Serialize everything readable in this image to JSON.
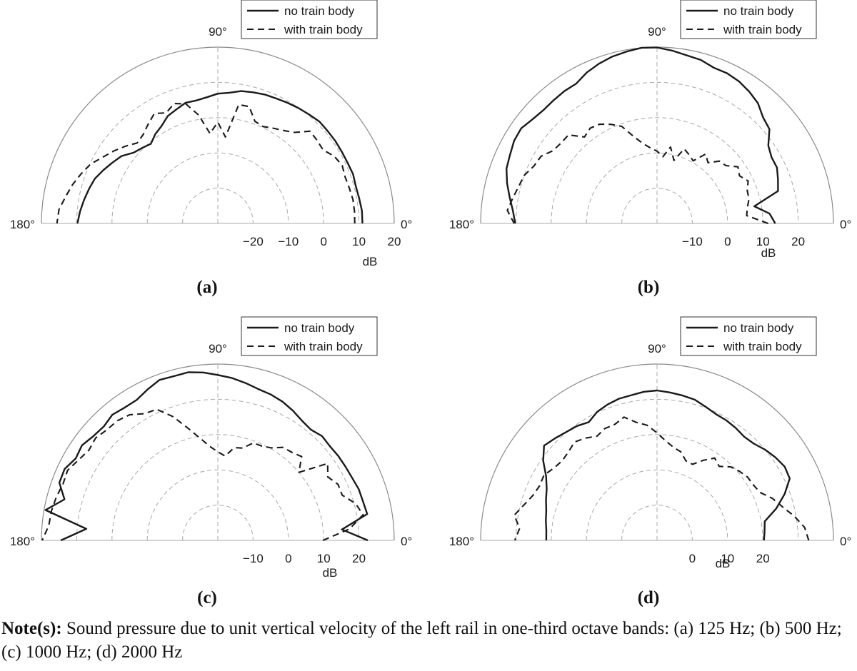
{
  "legend": {
    "solid": "no train body",
    "dashed": "with train body"
  },
  "angle_labels": {
    "deg0": "0°",
    "deg90": "90°",
    "deg180": "180°"
  },
  "unit_label": "dB",
  "note": {
    "prefix": "Note(s):",
    "text": "Sound pressure due to unit vertical velocity of the left rail in one-third octave bands: (a) 125 Hz; (b) 500 Hz; (c) 1000 Hz; (d) 2000 Hz"
  },
  "colors": {
    "curves": "#1a1a1a",
    "grid": "#a8a8a8",
    "outer": "#8a8a8a"
  },
  "chart_data": [
    {
      "type": "polar-line",
      "panel_label": "(a)",
      "unit": "dB",
      "r_ticks": [
        "-20",
        "-10",
        "0",
        "10",
        "20"
      ],
      "r_min": -30,
      "r_max": 20,
      "theta_range_deg": [
        0,
        180
      ],
      "series": [
        {
          "name": "no train body",
          "style": "solid",
          "theta_deg": [
            0,
            5,
            10,
            15,
            20,
            25,
            30,
            35,
            40,
            45,
            50,
            55,
            60,
            65,
            70,
            75,
            80,
            85,
            90,
            95,
            100,
            105,
            110,
            115,
            120,
            125,
            130,
            135,
            140,
            145,
            150,
            155,
            160,
            165,
            170,
            175,
            180
          ],
          "r": [
            11,
            11,
            10.7,
            10.5,
            10.8,
            10.6,
            10.6,
            10.7,
            10.7,
            10.8,
            10.3,
            9.9,
            9.5,
            9.1,
            8.9,
            8.5,
            8.1,
            7.2,
            6.8,
            5.9,
            5.4,
            5.4,
            4.4,
            3.6,
            1.9,
            0.9,
            -0.5,
            0.3,
            1.2,
            3.3,
            4.5,
            5.8,
            7.1,
            7.8,
            8.5,
            9.2,
            9.8
          ]
        },
        {
          "name": "with train body",
          "style": "dashed",
          "theta_deg": [
            0,
            5,
            10,
            15,
            20,
            25,
            30,
            35,
            40,
            45,
            50,
            55,
            60,
            65,
            70,
            75,
            80,
            85,
            90,
            95,
            100,
            105,
            110,
            115,
            120,
            125,
            130,
            135,
            140,
            145,
            150,
            155,
            160,
            165,
            170,
            175,
            180
          ],
          "r": [
            8.8,
            8.9,
            8.9,
            8.6,
            8.4,
            8.9,
            8.1,
            6.4,
            6.7,
            7.0,
            3.7,
            2.2,
            1.2,
            0.3,
            0.8,
            4.3,
            4.2,
            -5.4,
            -1.3,
            -4.4,
            1.2,
            5.1,
            6.2,
            4.6,
            6.0,
            4.4,
            2.9,
            2.3,
            4.1,
            5.9,
            7.6,
            9.8,
            11.2,
            12.6,
            13.8,
            15.2,
            15.6
          ]
        }
      ]
    },
    {
      "type": "polar-line",
      "panel_label": "(b)",
      "unit": "dB",
      "r_ticks": [
        "-10",
        "0",
        "10",
        "20"
      ],
      "r_min": -20,
      "r_max": 30,
      "theta_range_deg": [
        0,
        180
      ],
      "series": [
        {
          "name": "no train body",
          "style": "solid",
          "theta_deg": [
            0,
            5,
            10,
            15,
            20,
            25,
            30,
            35,
            40,
            45,
            50,
            55,
            60,
            65,
            70,
            75,
            80,
            85,
            90,
            95,
            100,
            105,
            110,
            115,
            120,
            125,
            130,
            135,
            140,
            145,
            150,
            155,
            160,
            165,
            170,
            175,
            180
          ],
          "r": [
            13.5,
            12,
            8,
            15.5,
            16.5,
            17.5,
            17.5,
            18.5,
            21.6,
            22.5,
            24.5,
            25.6,
            26.5,
            27,
            27,
            28,
            28.4,
            29.2,
            29.9,
            30,
            29.5,
            29,
            28.2,
            27.2,
            25.8,
            25.8,
            25.6,
            25.5,
            26,
            27,
            26.8,
            26,
            25.4,
            24,
            22.4,
            21,
            20.2
          ]
        },
        {
          "name": "with train body",
          "style": "dashed",
          "theta_deg": [
            0,
            5,
            10,
            15,
            20,
            25,
            30,
            35,
            40,
            45,
            50,
            55,
            60,
            65,
            70,
            75,
            80,
            85,
            90,
            95,
            100,
            105,
            110,
            115,
            120,
            125,
            130,
            135,
            140,
            145,
            150,
            155,
            160,
            165,
            170,
            175,
            180
          ],
          "r": [
            11.5,
            5.5,
            6,
            7,
            7.2,
            8.5,
            7,
            8,
            5.5,
            5,
            2.5,
            4,
            0.5,
            1.5,
            2.5,
            -1.5,
            2,
            -1,
            0.5,
            1.5,
            3,
            5.5,
            9.3,
            11,
            12.5,
            13,
            12,
            15.5,
            15.5,
            16,
            18,
            18.5,
            20,
            20.6,
            21.5,
            22.6,
            20.5
          ]
        }
      ]
    },
    {
      "type": "polar-line",
      "panel_label": "(c)",
      "unit": "dB",
      "r_ticks": [
        "-10",
        "0",
        "10",
        "20"
      ],
      "r_min": -20,
      "r_max": 30,
      "theta_range_deg": [
        0,
        180
      ],
      "series": [
        {
          "name": "no train body",
          "style": "solid",
          "theta_deg": [
            0,
            5,
            10,
            15,
            20,
            25,
            30,
            35,
            40,
            45,
            50,
            55,
            60,
            65,
            70,
            75,
            80,
            85,
            90,
            95,
            100,
            105,
            110,
            115,
            120,
            125,
            130,
            135,
            140,
            145,
            150,
            155,
            160,
            165,
            170,
            175,
            180
          ],
          "r": [
            22.5,
            15.3,
            23,
            22.6,
            22.5,
            22,
            21.8,
            21.7,
            21.5,
            21.8,
            21,
            21.5,
            22.5,
            23.4,
            24,
            24.4,
            25.3,
            26.2,
            26.9,
            27.8,
            28.4,
            28.2,
            28.4,
            27.2,
            26,
            26,
            26.5,
            25.7,
            26,
            27,
            26.5,
            27.9,
            27.8,
            25,
            29.6,
            17.4,
            24.5
          ]
        },
        {
          "name": "with train body",
          "style": "dashed",
          "theta_deg": [
            0,
            5,
            10,
            15,
            20,
            25,
            30,
            35,
            40,
            45,
            50,
            55,
            60,
            65,
            70,
            75,
            80,
            85,
            90,
            95,
            100,
            105,
            110,
            115,
            120,
            125,
            130,
            135,
            140,
            145,
            150,
            155,
            160,
            165,
            170,
            175,
            180
          ],
          "r": [
            9.8,
            17.5,
            21.8,
            20.4,
            17.5,
            17.6,
            16,
            18,
            10,
            13.6,
            12.6,
            12.2,
            10.3,
            9.5,
            9.4,
            7.1,
            6.7,
            4,
            5.1,
            6.8,
            9.5,
            13,
            17.4,
            21,
            21.5,
            23.5,
            24.3,
            24.4,
            25.2,
            24.6,
            25.6,
            27,
            26.7,
            27.4,
            27.9,
            28.1,
            29.8
          ]
        }
      ]
    },
    {
      "type": "polar-line",
      "panel_label": "(d)",
      "unit": "dB",
      "r_ticks": [
        "0",
        "10",
        "20"
      ],
      "r_min": -10,
      "r_max": 40,
      "theta_range_deg": [
        0,
        180
      ],
      "series": [
        {
          "name": "no train body",
          "style": "solid",
          "theta_deg": [
            0,
            5,
            10,
            15,
            20,
            25,
            30,
            35,
            40,
            45,
            50,
            55,
            60,
            65,
            70,
            75,
            80,
            85,
            90,
            95,
            100,
            105,
            110,
            115,
            120,
            125,
            130,
            135,
            140,
            145,
            150,
            155,
            160,
            165,
            170,
            175,
            180
          ],
          "r": [
            20.3,
            20.6,
            21,
            25,
            28.5,
            31.5,
            31.8,
            31,
            30,
            28.8,
            28.4,
            28.9,
            29.3,
            29.5,
            30.3,
            31.3,
            31.7,
            32.1,
            32.5,
            32.3,
            31.8,
            31.6,
            31,
            30.2,
            28.7,
            29.6,
            30.1,
            30.9,
            31.8,
            29.4,
            26.3,
            24.5,
            23.5,
            22.5,
            22,
            21.5,
            21.4
          ]
        },
        {
          "name": "with train body",
          "style": "dashed",
          "theta_deg": [
            0,
            5,
            10,
            15,
            20,
            25,
            30,
            35,
            40,
            45,
            50,
            55,
            60,
            65,
            70,
            75,
            80,
            85,
            90,
            95,
            100,
            105,
            110,
            115,
            120,
            125,
            130,
            135,
            140,
            145,
            150,
            155,
            160,
            165,
            170,
            175,
            180
          ],
          "r": [
            33,
            32,
            29.5,
            26.8,
            24.8,
            22.2,
            21.5,
            21.3,
            20.5,
            19.5,
            17.4,
            18.5,
            16.2,
            13.8,
            14,
            16,
            16.8,
            18.3,
            20.5,
            22.8,
            24,
            26.2,
            25,
            25,
            24.1,
            25.4,
            26.4,
            25.5,
            25.1,
            25.7,
            27,
            26.7,
            27.4,
            29,
            31.1,
            29.1,
            30.3
          ]
        }
      ]
    }
  ]
}
